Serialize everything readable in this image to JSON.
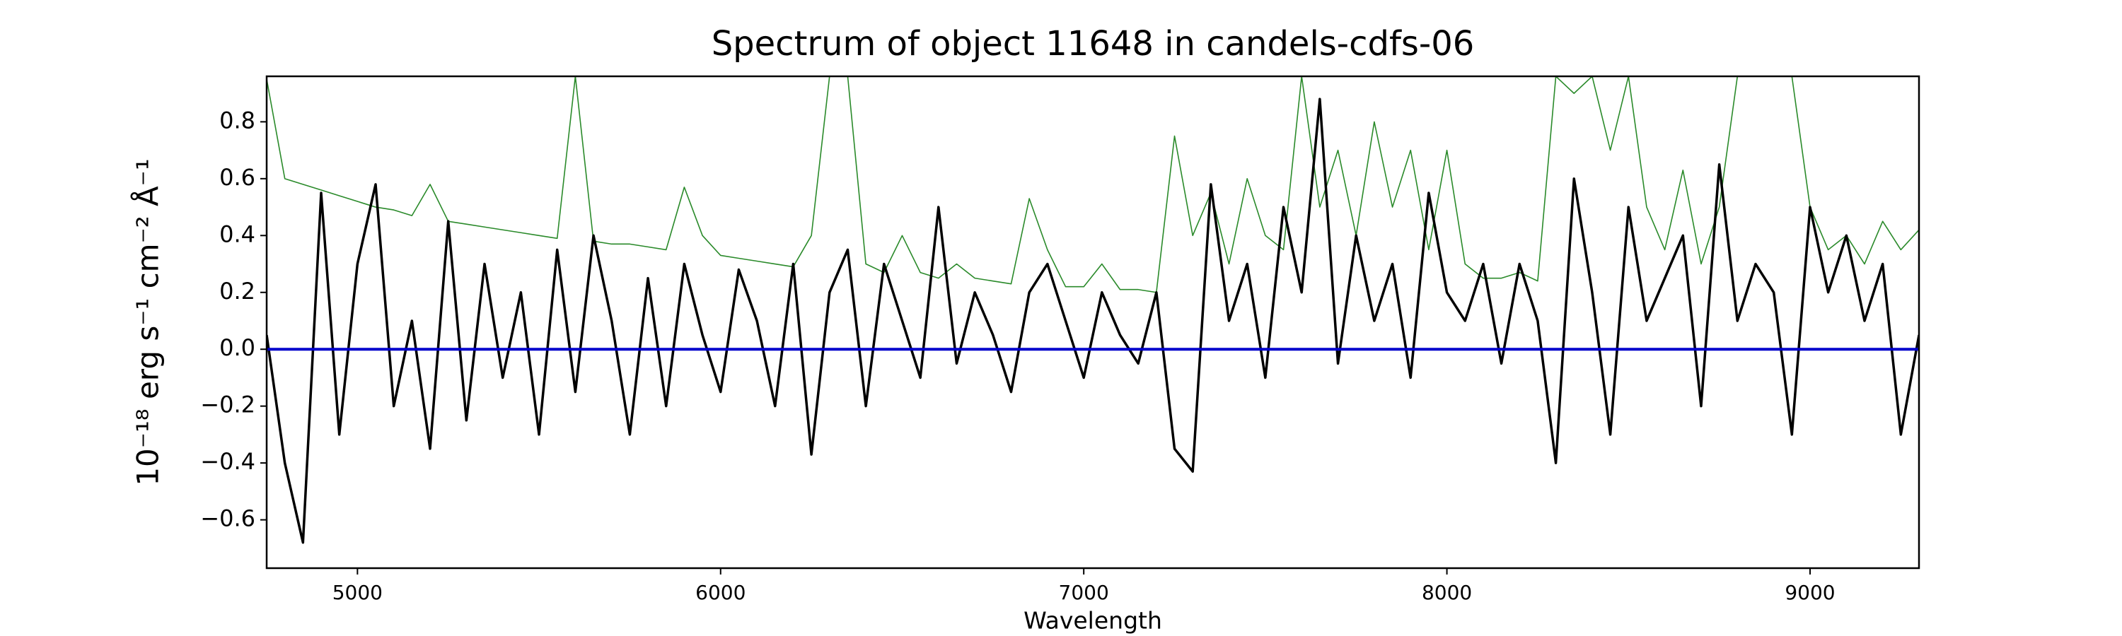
{
  "chart_data": {
    "type": "line",
    "title": "Spectrum of object 11648 in candels-cdfs-06",
    "x_label": "Wavelength",
    "y_label": "10⁻¹⁸ erg s⁻¹ cm⁻² Å⁻¹",
    "x": [
      4750,
      4800,
      4850,
      4900,
      4950,
      5000,
      5050,
      5100,
      5150,
      5200,
      5250,
      5300,
      5350,
      5400,
      5450,
      5500,
      5550,
      5600,
      5650,
      5700,
      5750,
      5800,
      5850,
      5900,
      5950,
      6000,
      6050,
      6100,
      6150,
      6200,
      6250,
      6300,
      6350,
      6400,
      6450,
      6500,
      6550,
      6600,
      6650,
      6700,
      6750,
      6800,
      6850,
      6900,
      6950,
      7000,
      7050,
      7100,
      7150,
      7200,
      7250,
      7300,
      7350,
      7400,
      7450,
      7500,
      7550,
      7600,
      7650,
      7700,
      7750,
      7800,
      7850,
      7900,
      7950,
      8000,
      8050,
      8100,
      8150,
      8200,
      8250,
      8300,
      8350,
      8400,
      8450,
      8500,
      8550,
      8600,
      8650,
      8700,
      8750,
      8800,
      8850,
      8900,
      8950,
      9000,
      9050,
      9100,
      9150,
      9200,
      9250,
      9300
    ],
    "series": [
      {
        "color": "#2a8a2a",
        "width": 1.6,
        "values": [
          0.95,
          0.6,
          0.58,
          0.56,
          0.54,
          0.52,
          0.5,
          0.49,
          0.47,
          0.58,
          0.45,
          0.44,
          0.43,
          0.42,
          0.41,
          0.4,
          0.39,
          0.96,
          0.38,
          0.37,
          0.37,
          0.36,
          0.35,
          0.57,
          0.4,
          0.33,
          0.32,
          0.31,
          0.3,
          0.29,
          0.4,
          0.96,
          0.96,
          0.3,
          0.27,
          0.4,
          0.27,
          0.25,
          0.3,
          0.25,
          0.24,
          0.23,
          0.53,
          0.35,
          0.22,
          0.22,
          0.3,
          0.21,
          0.21,
          0.2,
          0.75,
          0.4,
          0.55,
          0.3,
          0.6,
          0.4,
          0.35,
          0.96,
          0.5,
          0.7,
          0.4,
          0.8,
          0.5,
          0.7,
          0.35,
          0.7,
          0.3,
          0.25,
          0.25,
          0.27,
          0.24,
          0.96,
          0.9,
          0.96,
          0.7,
          0.96,
          0.5,
          0.35,
          0.63,
          0.3,
          0.5,
          0.96,
          0.96,
          0.96,
          0.96,
          0.5,
          0.35,
          0.4,
          0.3,
          0.45,
          0.35,
          0.42
        ]
      },
      {
        "color": "#000000",
        "width": 3.5,
        "values": [
          0.05,
          -0.4,
          -0.68,
          0.55,
          -0.3,
          0.3,
          0.58,
          -0.2,
          0.1,
          -0.35,
          0.45,
          -0.25,
          0.3,
          -0.1,
          0.2,
          -0.3,
          0.35,
          -0.15,
          0.4,
          0.1,
          -0.3,
          0.25,
          -0.2,
          0.3,
          0.05,
          -0.15,
          0.28,
          0.1,
          -0.2,
          0.3,
          -0.37,
          0.2,
          0.35,
          -0.2,
          0.3,
          0.1,
          -0.1,
          0.5,
          -0.05,
          0.2,
          0.05,
          -0.15,
          0.2,
          0.3,
          0.1,
          -0.1,
          0.2,
          0.05,
          -0.05,
          0.2,
          -0.35,
          -0.43,
          0.58,
          0.1,
          0.3,
          -0.1,
          0.5,
          0.2,
          0.88,
          -0.05,
          0.4,
          0.1,
          0.3,
          -0.1,
          0.55,
          0.2,
          0.1,
          0.3,
          -0.05,
          0.3,
          0.1,
          -0.4,
          0.6,
          0.2,
          -0.3,
          0.5,
          0.1,
          0.25,
          0.4,
          -0.2,
          0.65,
          0.1,
          0.3,
          0.2,
          -0.3,
          0.5,
          0.2,
          0.4,
          0.1,
          0.3,
          -0.3,
          0.05
        ]
      },
      {
        "color": "#0000cc",
        "width": 4,
        "values": [
          0,
          0,
          0,
          0,
          0,
          0,
          0,
          0,
          0,
          0,
          0,
          0,
          0,
          0,
          0,
          0,
          0,
          0,
          0,
          0,
          0,
          0,
          0,
          0,
          0,
          0,
          0,
          0,
          0,
          0,
          0,
          0,
          0,
          0,
          0,
          0,
          0,
          0,
          0,
          0,
          0,
          0,
          0,
          0,
          0,
          0,
          0,
          0,
          0,
          0,
          0,
          0,
          0,
          0,
          0,
          0,
          0,
          0,
          0,
          0,
          0,
          0,
          0,
          0,
          0,
          0,
          0,
          0,
          0,
          0,
          0,
          0,
          0,
          0,
          0,
          0,
          0,
          0,
          0,
          0,
          0,
          0,
          0,
          0,
          0,
          0,
          0,
          0,
          0,
          0,
          0,
          0
        ]
      }
    ],
    "xlim": [
      4750,
      9300
    ],
    "ylim": [
      -0.77,
      0.96
    ],
    "xticks": [
      5000,
      6000,
      7000,
      8000,
      9000
    ],
    "yticks": [
      {
        "value": -0.6,
        "label": "−0.6"
      },
      {
        "value": -0.4,
        "label": "−0.4"
      },
      {
        "value": -0.2,
        "label": "−0.2"
      },
      {
        "value": 0,
        "label": "0.0"
      },
      0.2,
      0.4,
      0.6,
      0.8
    ],
    "grid": false
  }
}
